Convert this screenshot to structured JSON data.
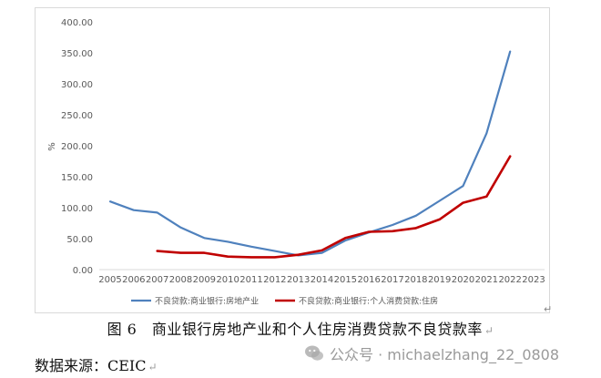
{
  "chart_data": {
    "type": "line",
    "ylabel": "%",
    "ylim": [
      0,
      400
    ],
    "yticks": [
      "0.00",
      "50.00",
      "100.00",
      "150.00",
      "200.00",
      "250.00",
      "300.00",
      "350.00",
      "400.00"
    ],
    "x": [
      "2005",
      "2006",
      "2007",
      "2008",
      "2009",
      "2010",
      "2011",
      "2012",
      "2013",
      "2014",
      "2015",
      "2016",
      "2017",
      "2018",
      "2019",
      "2020",
      "2021",
      "2022",
      "2023"
    ],
    "grid": false,
    "legend_position": "bottom",
    "colors": [
      "#4f81bd",
      "#c00000"
    ],
    "series": [
      {
        "name": "不良贷款:商业银行:房地产业",
        "values": [
          110,
          96,
          92,
          68,
          51,
          45,
          37,
          30,
          23,
          27,
          47,
          60,
          72,
          87,
          111,
          135,
          220,
          352,
          null
        ]
      },
      {
        "name": "不良贷款:商业银行:个人消费贷款:住房",
        "values": [
          null,
          null,
          30,
          27,
          27,
          21,
          20,
          20,
          24,
          31,
          51,
          61,
          62,
          67,
          81,
          108,
          118,
          183,
          null
        ]
      }
    ]
  },
  "caption": "图 6　商业银行房地产业和个人住房消费贷款不良贷款率",
  "source": "数据来源：CEIC",
  "paragraph_mark": "↵",
  "watermark": "公众号 · michaelzhang_22_0808"
}
